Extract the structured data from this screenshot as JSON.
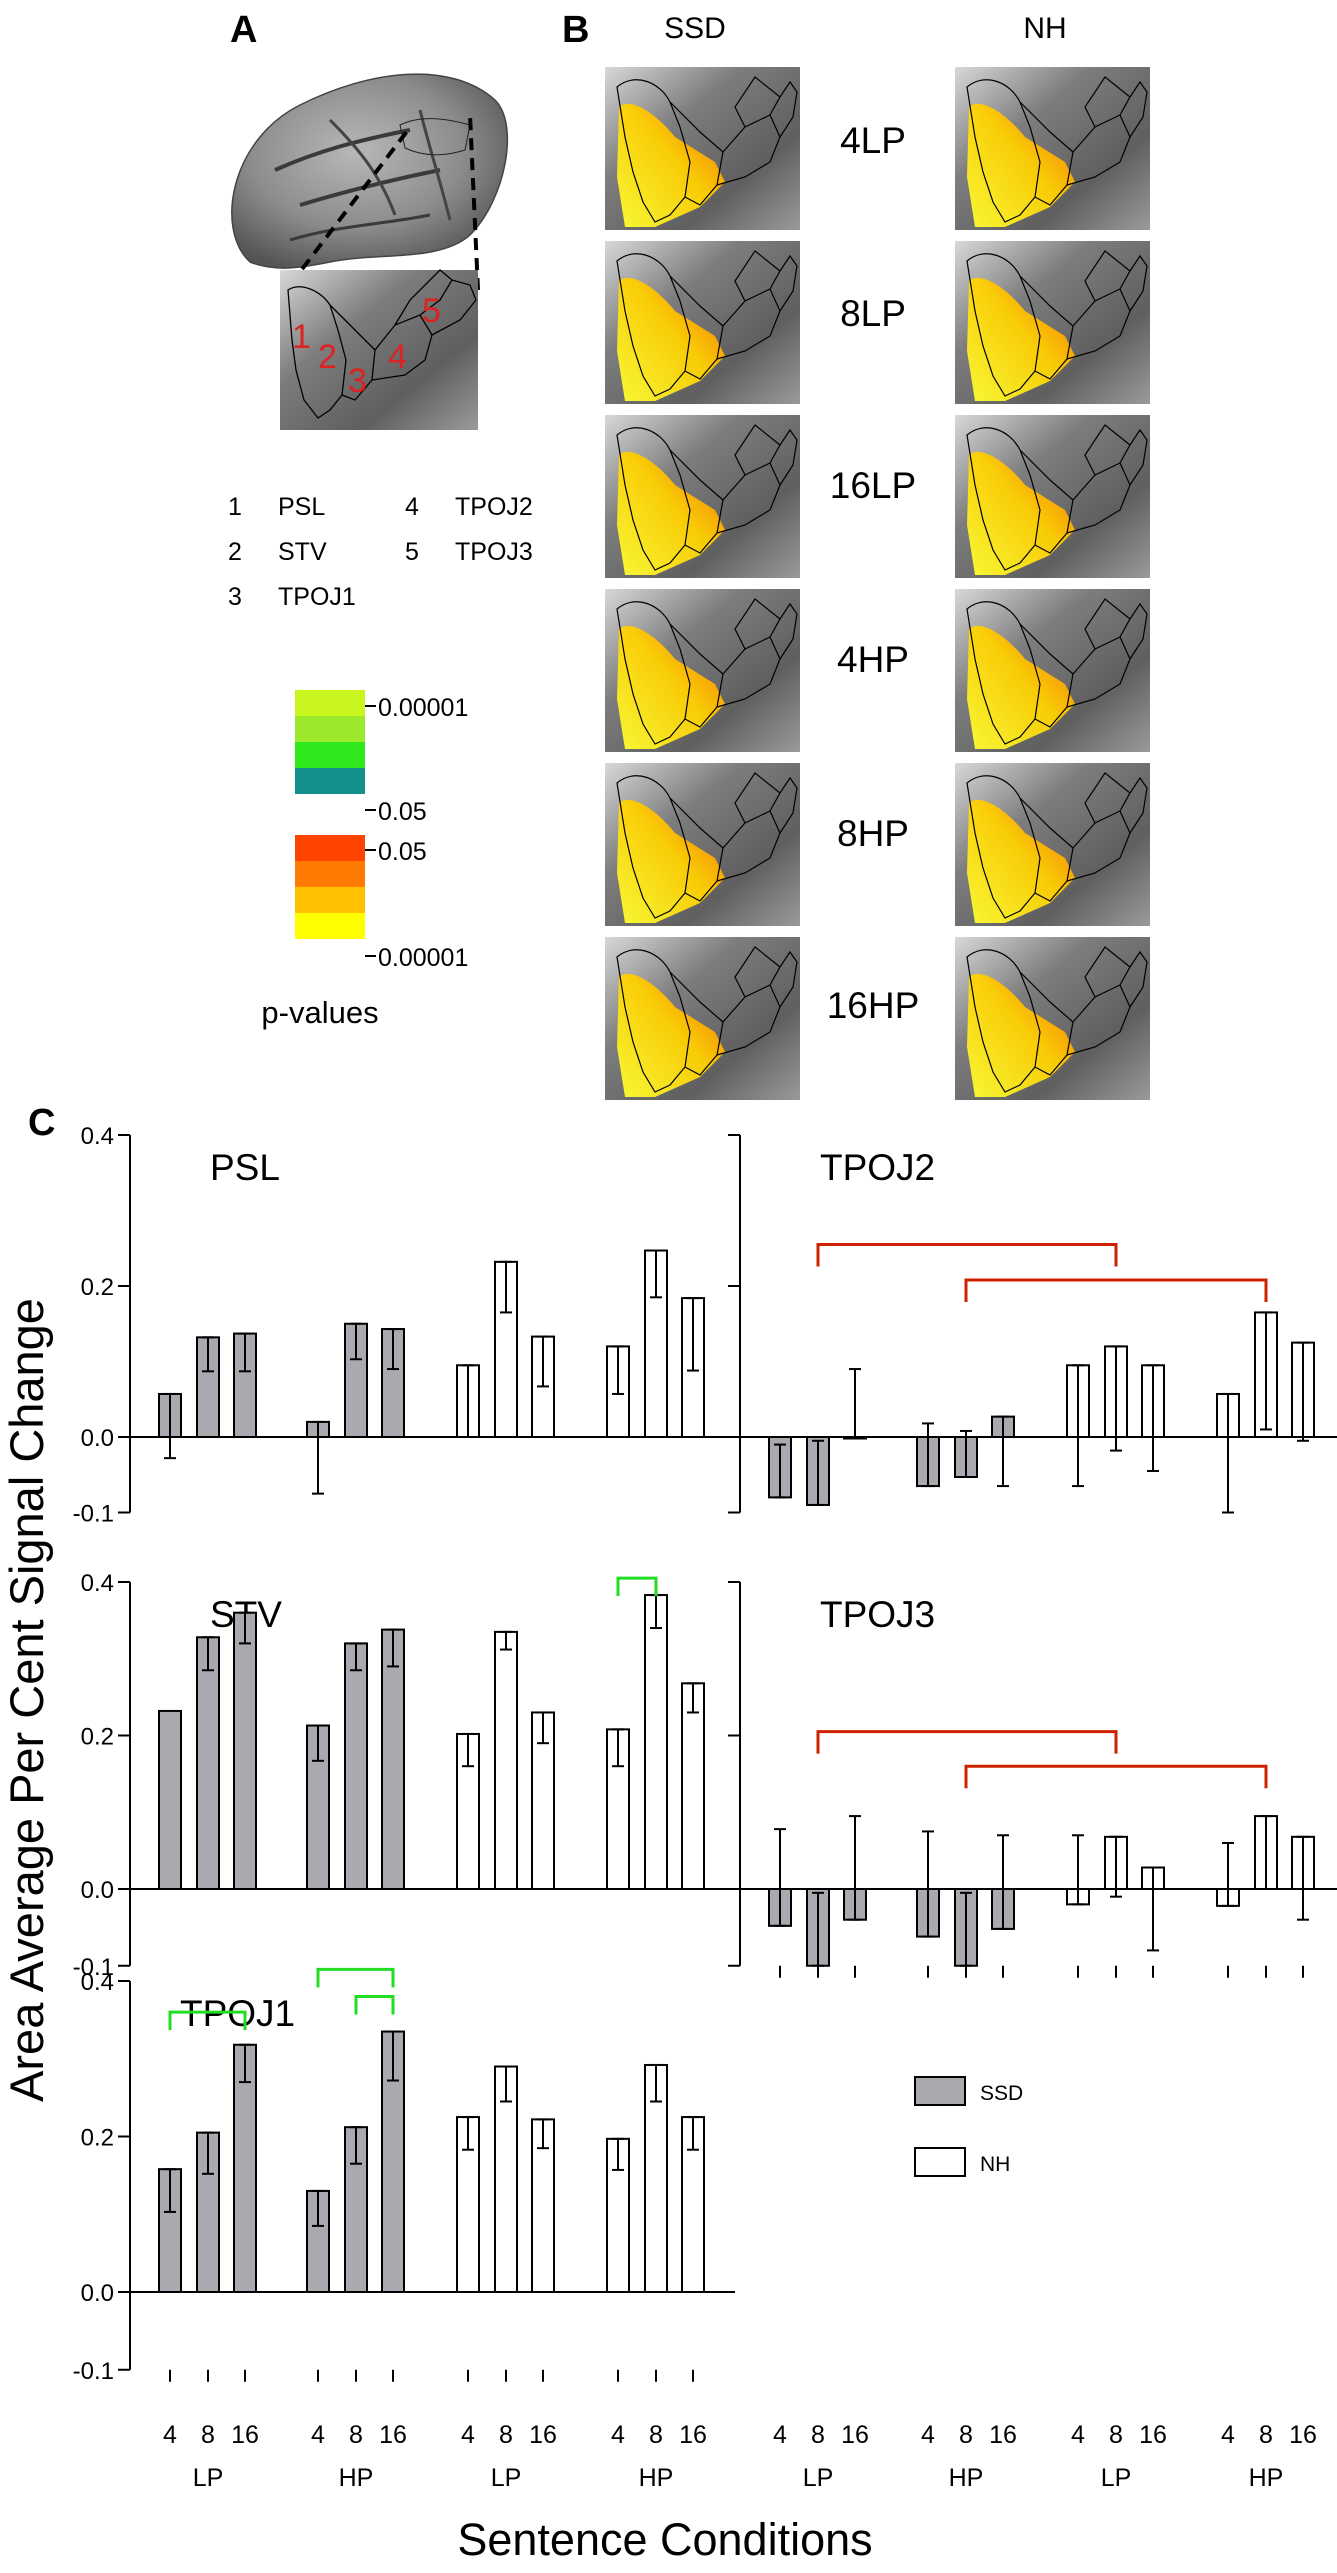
{
  "panel_labels": {
    "a": "A",
    "b": "B",
    "c": "C"
  },
  "region_list": [
    {
      "num": "1",
      "name": "PSL"
    },
    {
      "num": "2",
      "name": "STV"
    },
    {
      "num": "3",
      "name": "TPOJ1"
    },
    {
      "num": "4",
      "name": "TPOJ2"
    },
    {
      "num": "5",
      "name": "TPOJ3"
    }
  ],
  "brain_numbers": [
    "1",
    "2",
    "3",
    "4",
    "5"
  ],
  "colorbar": {
    "upper_top": "0.00001",
    "upper_bottom": "0.05",
    "lower_top": "0.05",
    "lower_bottom": "0.00001",
    "caption": "p-values",
    "upper_colors": [
      "#c8f51e",
      "#9be82d",
      "#2ee81e",
      "#138f8c"
    ],
    "lower_colors": [
      "#ff4400",
      "#ff7a00",
      "#ffc000",
      "#ffff00"
    ]
  },
  "map_columns": [
    "SSD",
    "NH"
  ],
  "map_conditions": [
    "4LP",
    "8LP",
    "16LP",
    "4HP",
    "8HP",
    "16HP"
  ],
  "chart_data": {
    "type": "bar",
    "ylabel": "Area Average Per Cent Signal Change",
    "xlabel": "Sentence Conditions",
    "ylim": [
      -0.1,
      0.4
    ],
    "yticks": [
      0.4,
      0.2,
      0.0,
      -0.1
    ],
    "ytick_labels": [
      "0.4",
      "0.2",
      "0.0",
      "-0.1"
    ],
    "tick_labels": [
      "4",
      "8",
      "16",
      "4",
      "8",
      "16",
      "4",
      "8",
      "16",
      "4",
      "8",
      "16"
    ],
    "group_labels": [
      "LP",
      "HP",
      "LP",
      "HP"
    ],
    "legend": [
      {
        "name": "SSD",
        "color": "#a9a9b0"
      },
      {
        "name": "NH",
        "color": "#ffffff"
      }
    ],
    "series_colors": [
      "SSD",
      "SSD",
      "SSD",
      "SSD",
      "SSD",
      "SSD",
      "NH",
      "NH",
      "NH",
      "NH",
      "NH",
      "NH"
    ],
    "significance_colors": {
      "within": "#22dd22",
      "between": "#cc2200"
    },
    "panels": [
      {
        "name": "PSL",
        "values": [
          0.057,
          0.132,
          0.137,
          0.02,
          0.15,
          0.143,
          0.095,
          0.232,
          0.133,
          0.12,
          0.247,
          0.184
        ],
        "errors": [
          [
            -0.028,
            0.057
          ],
          [
            0.087,
            0.132
          ],
          [
            0.087,
            0.137
          ],
          [
            -0.075,
            0.02
          ],
          [
            0.103,
            0.15
          ],
          [
            0.09,
            0.143
          ],
          [
            0.0,
            0.095
          ],
          [
            0.165,
            0.232
          ],
          [
            0.067,
            0.133
          ],
          [
            0.057,
            0.12
          ],
          [
            0.185,
            0.247
          ],
          [
            0.088,
            0.184
          ]
        ],
        "brackets": []
      },
      {
        "name": "TPOJ2",
        "values": [
          -0.08,
          -0.09,
          -0.002,
          -0.065,
          -0.053,
          0.027,
          0.095,
          0.12,
          0.095,
          0.057,
          0.165,
          0.125
        ],
        "errors": [
          [
            -0.08,
            -0.01
          ],
          [
            -0.09,
            -0.005
          ],
          [
            -0.002,
            0.09
          ],
          [
            -0.065,
            0.018
          ],
          [
            -0.053,
            0.008
          ],
          [
            -0.065,
            0.027
          ],
          [
            -0.065,
            0.095
          ],
          [
            -0.018,
            0.12
          ],
          [
            -0.045,
            0.095
          ],
          [
            -0.1,
            0.057
          ],
          [
            0.01,
            0.165
          ],
          [
            -0.005,
            0.125
          ]
        ],
        "brackets": [
          {
            "from": 1,
            "to": 7,
            "y": 0.255,
            "kind": "between"
          },
          {
            "from": 4,
            "to": 10,
            "y": 0.208,
            "kind": "between"
          }
        ]
      },
      {
        "name": "STV",
        "values": [
          0.232,
          0.328,
          0.36,
          0.213,
          0.32,
          0.338,
          0.202,
          0.335,
          0.23,
          0.208,
          0.383,
          0.268
        ],
        "errors": [
          [
            0.232,
            0.232
          ],
          [
            0.285,
            0.328
          ],
          [
            0.32,
            0.36
          ],
          [
            0.167,
            0.213
          ],
          [
            0.285,
            0.32
          ],
          [
            0.29,
            0.338
          ],
          [
            0.16,
            0.202
          ],
          [
            0.312,
            0.335
          ],
          [
            0.19,
            0.23
          ],
          [
            0.16,
            0.208
          ],
          [
            0.34,
            0.383
          ],
          [
            0.23,
            0.268
          ]
        ],
        "brackets": [
          {
            "from": 9,
            "to": 10,
            "y": 0.405,
            "kind": "within"
          }
        ]
      },
      {
        "name": "TPOJ3",
        "values": [
          -0.048,
          -0.1,
          -0.04,
          -0.062,
          -0.1,
          -0.052,
          -0.02,
          0.068,
          0.028,
          -0.022,
          0.095,
          0.068
        ],
        "errors": [
          [
            -0.048,
            0.078
          ],
          [
            -0.1,
            -0.005
          ],
          [
            -0.04,
            0.095
          ],
          [
            -0.062,
            0.075
          ],
          [
            -0.1,
            -0.005
          ],
          [
            -0.052,
            0.07
          ],
          [
            -0.02,
            0.07
          ],
          [
            -0.01,
            0.068
          ],
          [
            -0.08,
            0.028
          ],
          [
            -0.022,
            0.06
          ],
          [
            0.0,
            0.095
          ],
          [
            -0.04,
            0.068
          ]
        ],
        "brackets": [
          {
            "from": 1,
            "to": 7,
            "y": 0.205,
            "kind": "between"
          },
          {
            "from": 4,
            "to": 10,
            "y": 0.16,
            "kind": "between"
          }
        ]
      },
      {
        "name": "TPOJ1",
        "values": [
          0.158,
          0.205,
          0.318,
          0.13,
          0.212,
          0.335,
          0.225,
          0.29,
          0.222,
          0.197,
          0.292,
          0.225
        ],
        "errors": [
          [
            0.103,
            0.158
          ],
          [
            0.152,
            0.205
          ],
          [
            0.27,
            0.318
          ],
          [
            0.085,
            0.13
          ],
          [
            0.165,
            0.212
          ],
          [
            0.272,
            0.335
          ],
          [
            0.183,
            0.225
          ],
          [
            0.245,
            0.29
          ],
          [
            0.185,
            0.222
          ],
          [
            0.157,
            0.197
          ],
          [
            0.245,
            0.292
          ],
          [
            0.183,
            0.225
          ]
        ],
        "brackets": [
          {
            "from": 0,
            "to": 2,
            "y": 0.36,
            "kind": "within"
          },
          {
            "from": 3,
            "to": 5,
            "y": 0.415,
            "kind": "within"
          },
          {
            "from": 4,
            "to": 5,
            "y": 0.38,
            "kind": "within"
          }
        ]
      }
    ]
  }
}
